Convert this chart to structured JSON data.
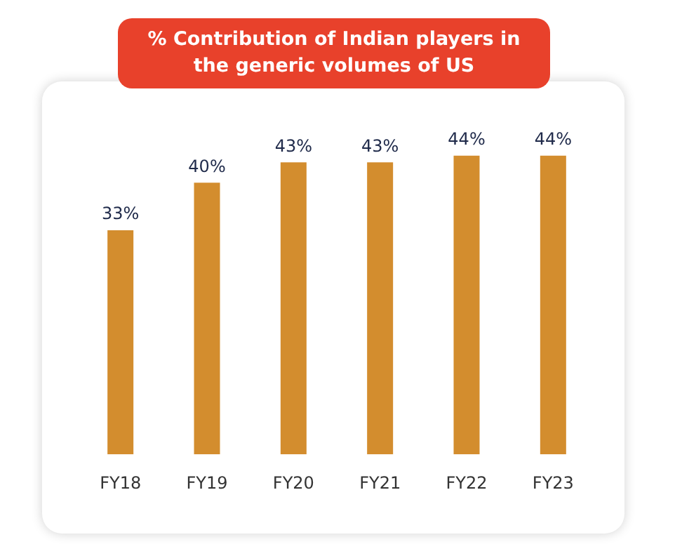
{
  "chart_data": {
    "type": "bar",
    "title": "% Contribution of Indian players in the generic volumes of US",
    "categories": [
      "FY18",
      "FY19",
      "FY20",
      "FY21",
      "FY22",
      "FY23"
    ],
    "values": [
      33,
      40,
      43,
      43,
      44,
      44
    ],
    "value_labels": [
      "33%",
      "40%",
      "43%",
      "43%",
      "44%",
      "44%"
    ],
    "color": "#d38d2e",
    "grid": false,
    "legend": false,
    "tick_labels": "x"
  }
}
